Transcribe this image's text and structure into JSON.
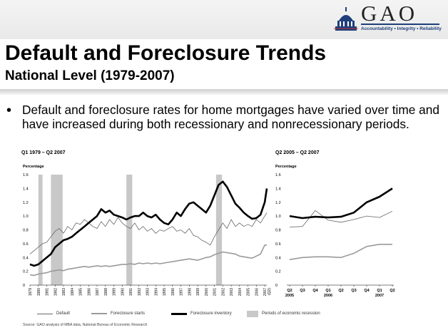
{
  "header": {
    "logo_text": "GAO",
    "logo_tagline": "Accountability • Integrity • Reliability"
  },
  "slide": {
    "title": "Default and Foreclosure Trends",
    "subtitle": "National Level (1979-2007)",
    "bullet": "Default and foreclosure rates for home mortgages have varied over time and have increased during both recessionary and nonrecessionary periods."
  },
  "legend": {
    "default": "Default",
    "starts": "Foreclosure starts",
    "inventory": "Foreclosure inventory",
    "recession": "Periods of economic recession"
  },
  "source": "Source: GAO analysis of MBA data, National Bureau of Economic Research",
  "chart_data": [
    {
      "type": "line",
      "title": "Q1 1979 – Q2 2007",
      "ylabel": "Percentage",
      "ylim": [
        0,
        1.6
      ],
      "yticks": [
        "0",
        "0.2",
        "0.4",
        "0.6",
        "0.8",
        "1.0",
        "1.2",
        "1.4",
        "1.6"
      ],
      "xticks": [
        "1979",
        "1980",
        "1981",
        "1982",
        "1983",
        "1984",
        "1985",
        "1986",
        "1987",
        "1988",
        "1989",
        "1990",
        "1991",
        "1992",
        "1993",
        "1994",
        "1995",
        "1996",
        "1997",
        "1998",
        "1999",
        "2000",
        "2001",
        "2002",
        "2003",
        "2004",
        "2005",
        "2006",
        "2007"
      ],
      "last_tick_note": "(Q2)",
      "recessions": [
        [
          1980.0,
          1980.5
        ],
        [
          1981.5,
          1982.9
        ],
        [
          1990.5,
          1991.2
        ],
        [
          2001.2,
          2001.9
        ]
      ],
      "series": [
        {
          "key": "default",
          "color": "#666666",
          "width": 0.8,
          "x": [
            1979,
            1979.5,
            1980,
            1980.5,
            1981,
            1981.5,
            1982,
            1982.5,
            1983,
            1983.5,
            1984,
            1984.5,
            1985,
            1985.5,
            1986,
            1986.5,
            1987,
            1987.5,
            1988,
            1988.5,
            1989,
            1989.5,
            1990,
            1990.5,
            1991,
            1991.5,
            1992,
            1992.5,
            1993,
            1993.5,
            1994,
            1994.5,
            1995,
            1995.5,
            1996,
            1996.5,
            1997,
            1997.5,
            1998,
            1998.5,
            1999,
            1999.5,
            2000,
            2000.5,
            2001,
            2001.5,
            2002,
            2002.5,
            2003,
            2003.5,
            2004,
            2004.5,
            2005,
            2005.5,
            2006,
            2006.5,
            2007,
            2007.25
          ],
          "y": [
            0.45,
            0.5,
            0.55,
            0.6,
            0.62,
            0.7,
            0.78,
            0.82,
            0.75,
            0.85,
            0.8,
            0.9,
            0.88,
            0.95,
            0.9,
            0.85,
            0.82,
            0.92,
            0.85,
            0.95,
            0.88,
            0.98,
            0.9,
            0.85,
            0.82,
            0.9,
            0.8,
            0.85,
            0.78,
            0.82,
            0.75,
            0.8,
            0.78,
            0.82,
            0.85,
            0.78,
            0.8,
            0.75,
            0.82,
            0.72,
            0.7,
            0.65,
            0.62,
            0.58,
            0.7,
            0.8,
            0.9,
            0.82,
            0.95,
            0.85,
            0.9,
            0.85,
            0.88,
            0.85,
            0.95,
            0.9,
            1.0,
            1.05
          ]
        },
        {
          "key": "starts",
          "color": "#9a9a9a",
          "width": 1.6,
          "x": [
            1979,
            1979.5,
            1980,
            1980.5,
            1981,
            1981.5,
            1982,
            1982.5,
            1983,
            1983.5,
            1984,
            1984.5,
            1985,
            1985.5,
            1986,
            1986.5,
            1987,
            1987.5,
            1988,
            1988.5,
            1989,
            1989.5,
            1990,
            1990.5,
            1991,
            1991.5,
            1992,
            1992.5,
            1993,
            1993.5,
            1994,
            1994.5,
            1995,
            1995.5,
            1996,
            1996.5,
            1997,
            1997.5,
            1998,
            1998.5,
            1999,
            1999.5,
            2000,
            2000.5,
            2001,
            2001.5,
            2002,
            2002.5,
            2003,
            2003.5,
            2004,
            2004.5,
            2005,
            2005.5,
            2006,
            2006.5,
            2007,
            2007.25
          ],
          "y": [
            0.15,
            0.14,
            0.16,
            0.17,
            0.18,
            0.2,
            0.21,
            0.22,
            0.21,
            0.23,
            0.24,
            0.25,
            0.26,
            0.27,
            0.26,
            0.27,
            0.28,
            0.27,
            0.28,
            0.27,
            0.28,
            0.29,
            0.3,
            0.3,
            0.31,
            0.3,
            0.32,
            0.31,
            0.32,
            0.31,
            0.32,
            0.31,
            0.32,
            0.33,
            0.34,
            0.35,
            0.36,
            0.37,
            0.38,
            0.37,
            0.36,
            0.38,
            0.4,
            0.41,
            0.44,
            0.46,
            0.48,
            0.47,
            0.46,
            0.45,
            0.42,
            0.41,
            0.4,
            0.39,
            0.42,
            0.45,
            0.58,
            0.58
          ]
        },
        {
          "key": "inventory",
          "color": "#000000",
          "width": 2.6,
          "x": [
            1979,
            1979.5,
            1980,
            1980.5,
            1981,
            1981.5,
            1982,
            1982.5,
            1983,
            1983.5,
            1984,
            1984.5,
            1985,
            1985.5,
            1986,
            1986.5,
            1987,
            1987.5,
            1988,
            1988.5,
            1989,
            1989.5,
            1990,
            1990.5,
            1991,
            1991.5,
            1992,
            1992.5,
            1993,
            1993.5,
            1994,
            1994.5,
            1995,
            1995.5,
            1996,
            1996.5,
            1997,
            1997.5,
            1998,
            1998.5,
            1999,
            1999.5,
            2000,
            2000.5,
            2001,
            2001.5,
            2002,
            2002.5,
            2003,
            2003.5,
            2004,
            2004.5,
            2005,
            2005.5,
            2006,
            2006.5,
            2007,
            2007.25
          ],
          "y": [
            0.3,
            0.28,
            0.3,
            0.35,
            0.4,
            0.45,
            0.55,
            0.6,
            0.65,
            0.67,
            0.7,
            0.75,
            0.8,
            0.85,
            0.9,
            0.95,
            1.0,
            1.1,
            1.05,
            1.08,
            1.02,
            1.0,
            0.98,
            0.95,
            0.98,
            1.0,
            1.0,
            1.05,
            1.0,
            0.98,
            1.02,
            0.95,
            0.9,
            0.88,
            0.95,
            1.05,
            1.0,
            1.1,
            1.18,
            1.2,
            1.15,
            1.1,
            1.05,
            1.15,
            1.3,
            1.45,
            1.5,
            1.42,
            1.3,
            1.18,
            1.12,
            1.05,
            1.0,
            0.96,
            0.97,
            1.02,
            1.2,
            1.4
          ]
        }
      ]
    },
    {
      "type": "line",
      "title": "Q2 2005 – Q2 2007",
      "ylabel": "Percentage",
      "ylim": [
        0,
        1.6
      ],
      "yticks": [
        "0",
        "0.2",
        "0.4",
        "0.6",
        "0.8",
        "1.0",
        "1.2",
        "1.4",
        "1.6"
      ],
      "categories": [
        "Q2",
        "Q3",
        "Q4",
        "Q1",
        "Q2",
        "Q3",
        "Q4",
        "Q1",
        "Q2"
      ],
      "year_labels": [
        {
          "index": 0,
          "text": "2005"
        },
        {
          "index": 3,
          "text": "2006"
        },
        {
          "index": 7,
          "text": "2007"
        }
      ],
      "series": [
        {
          "key": "default",
          "color": "#666666",
          "width": 0.8,
          "values": [
            0.84,
            0.85,
            1.08,
            0.94,
            0.91,
            0.95,
            1.0,
            0.98,
            1.07
          ]
        },
        {
          "key": "starts",
          "color": "#9a9a9a",
          "width": 1.6,
          "values": [
            0.37,
            0.4,
            0.41,
            0.41,
            0.4,
            0.46,
            0.56,
            0.59,
            0.59
          ]
        },
        {
          "key": "inventory",
          "color": "#000000",
          "width": 2.6,
          "values": [
            1.0,
            0.97,
            0.99,
            0.98,
            0.99,
            1.05,
            1.2,
            1.28,
            1.4
          ]
        }
      ]
    }
  ]
}
